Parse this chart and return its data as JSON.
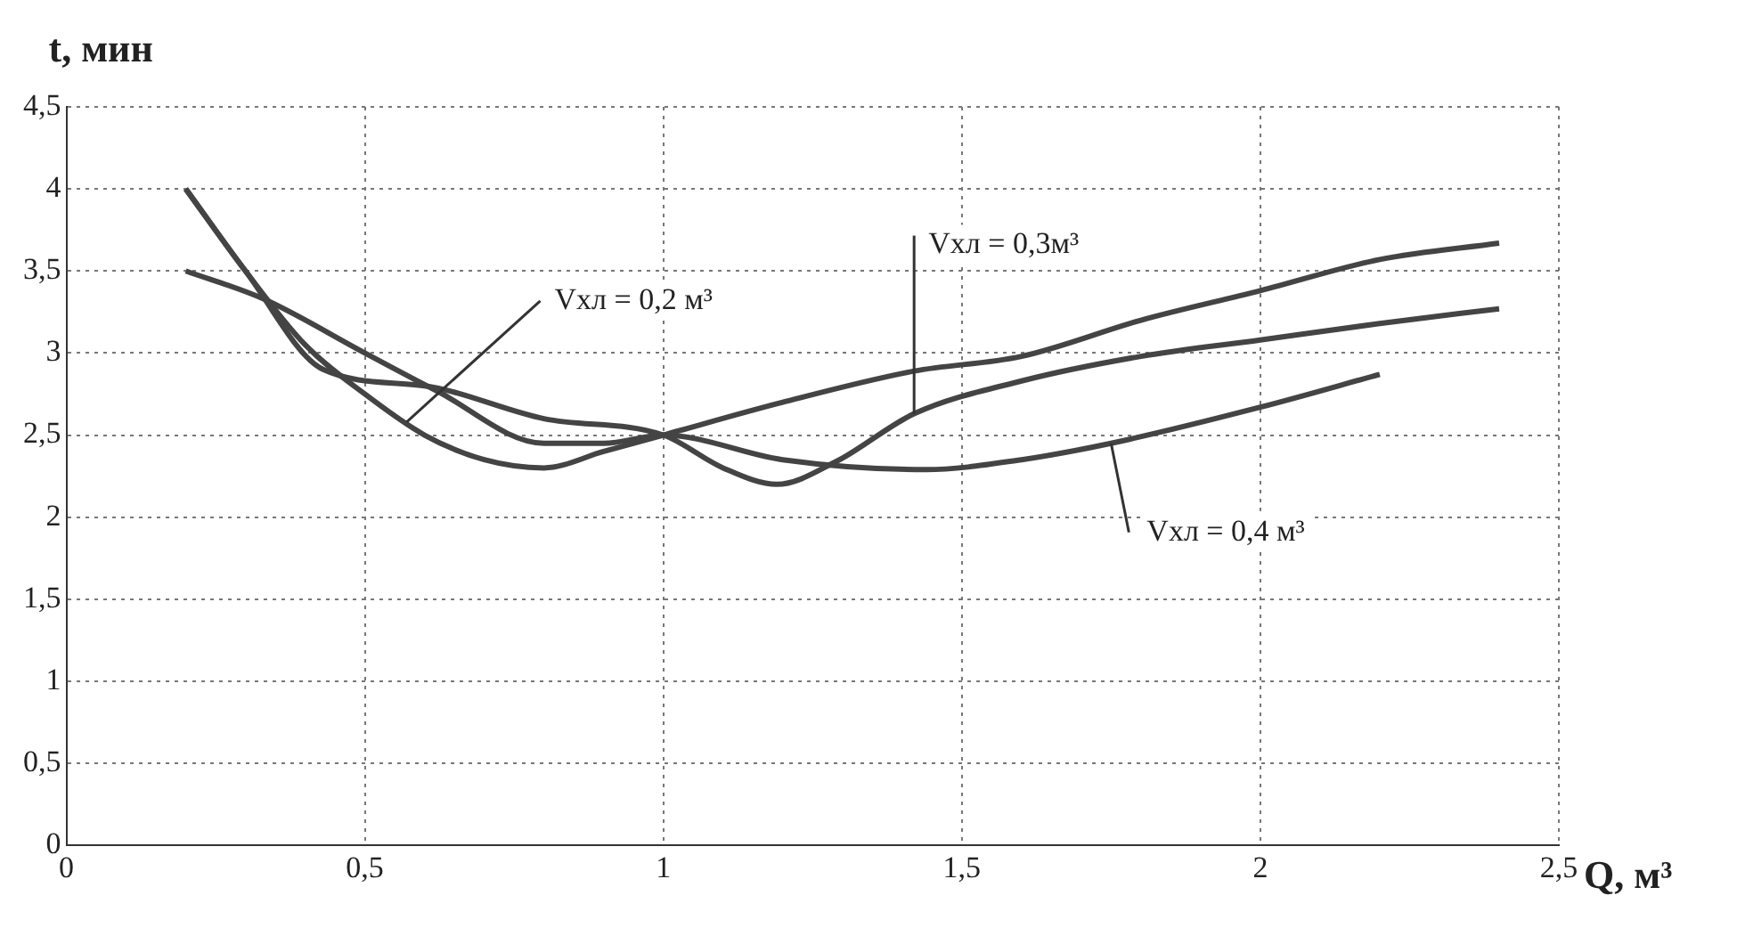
{
  "chart_data": {
    "type": "line",
    "xlabel": "Q, м³",
    "ylabel": "t, мин",
    "xlim": [
      0,
      2.5
    ],
    "xticks": [
      0,
      {
        "value": 0.5,
        "label": "0,5"
      },
      1,
      {
        "value": 1.5,
        "label": "1,5"
      },
      2,
      {
        "value": 2.5,
        "label": "2,5"
      }
    ],
    "ylim": [
      0,
      4.5
    ],
    "yticks": [
      0,
      {
        "value": 0.5,
        "label": "0,5"
      },
      1,
      {
        "value": 1.5,
        "label": "1,5"
      },
      2,
      {
        "value": 2.5,
        "label": "2,5"
      },
      3,
      {
        "value": 3.5,
        "label": "3,5"
      },
      4,
      {
        "value": 4.5,
        "label": "4,5"
      }
    ],
    "grid": true,
    "legend": false,
    "marker": "none",
    "line_style": "solid",
    "series": [
      {
        "color": "#444444",
        "x": [
          0.2,
          0.3,
          0.4,
          0.5,
          0.6,
          0.7,
          0.8,
          0.9,
          1.0,
          1.2,
          1.42,
          1.6,
          1.8,
          2.0,
          2.2,
          2.4
        ],
        "values": [
          4.0,
          3.5,
          3.05,
          2.75,
          2.5,
          2.35,
          2.3,
          2.4,
          2.5,
          2.7,
          2.89,
          2.98,
          3.2,
          3.38,
          3.57,
          3.67
        ]
      },
      {
        "color": "#444444",
        "x": [
          0.2,
          0.3,
          0.43,
          0.6,
          0.8,
          1.0,
          1.1,
          1.19,
          1.29,
          1.42,
          1.6,
          1.8,
          2.0,
          2.2,
          2.4
        ],
        "values": [
          4.0,
          3.5,
          2.9,
          2.8,
          2.6,
          2.5,
          2.3,
          2.2,
          2.34,
          2.63,
          2.83,
          2.98,
          3.08,
          3.18,
          3.27
        ]
      },
      {
        "color": "#444444",
        "x": [
          0.2,
          0.33,
          0.5,
          0.62,
          0.8,
          0.9,
          1.0,
          1.2,
          1.44,
          1.6,
          1.75,
          2.0,
          2.2
        ],
        "values": [
          3.5,
          3.33,
          3.0,
          2.77,
          2.45,
          2.45,
          2.5,
          2.35,
          2.29,
          2.35,
          2.45,
          2.67,
          2.87
        ]
      }
    ],
    "annotations": [
      {
        "text": "Vхл = 0,2 м³",
        "x": 0.57,
        "y": 2.58
      },
      {
        "text": "Vхл = 0,3м³",
        "x": 1.42,
        "y": 2.63
      },
      {
        "text": "Vхл = 0,4 м³",
        "x": 1.75,
        "y": 2.45
      }
    ]
  }
}
